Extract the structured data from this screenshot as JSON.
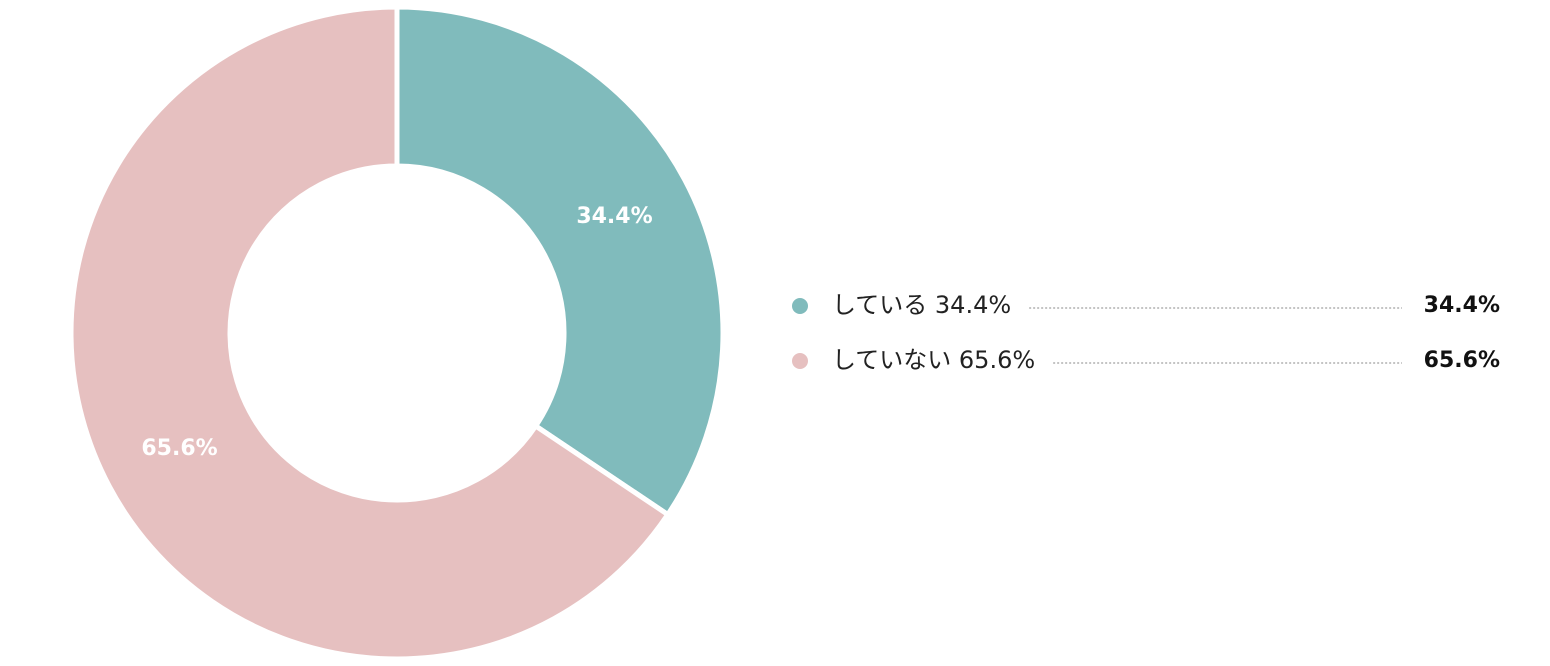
{
  "chart_data": {
    "type": "donut",
    "categories": [
      "している 34.4%",
      "していない 65.6%"
    ],
    "values": [
      34.4,
      65.6
    ],
    "value_labels": [
      "34.4%",
      "65.6%"
    ],
    "colors": [
      "#80bbbc",
      "#e6c0c0"
    ]
  }
}
